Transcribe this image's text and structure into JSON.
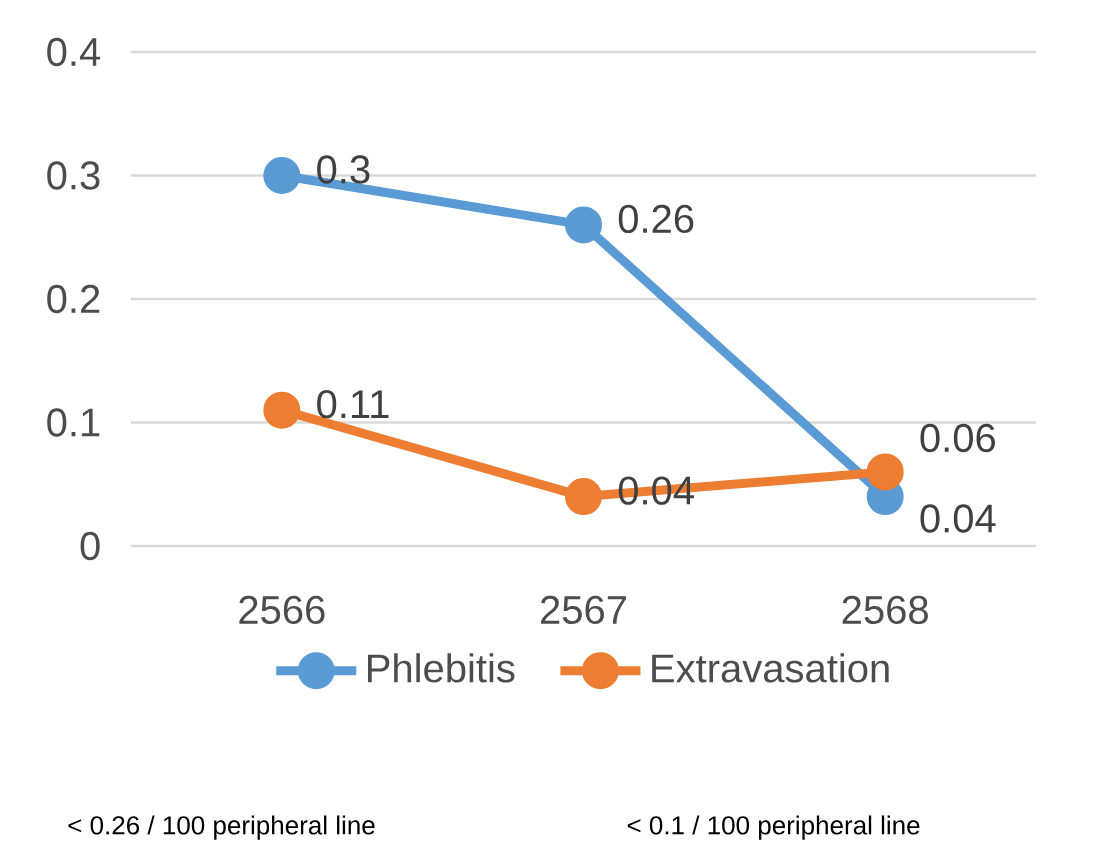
{
  "chart_data": {
    "type": "line",
    "categories": [
      "2566",
      "2567",
      "2568"
    ],
    "series": [
      {
        "name": "Phlebitis",
        "color": "#5b9bd5",
        "values": [
          0.3,
          0.26,
          0.04
        ]
      },
      {
        "name": "Extravasation",
        "color": "#ed7d31",
        "values": [
          0.11,
          0.04,
          0.06
        ]
      }
    ],
    "ylim": [
      0,
      0.4
    ],
    "yticks": [
      0,
      0.1,
      0.2,
      0.3,
      0.4
    ],
    "grid": "y",
    "legend": "bottom",
    "data_labels": true,
    "marker": "circle",
    "line_style": "solid",
    "annotations": [
      "< 0.26 / 100 peripheral line",
      "< 0.1 / 100 peripheral line"
    ]
  }
}
